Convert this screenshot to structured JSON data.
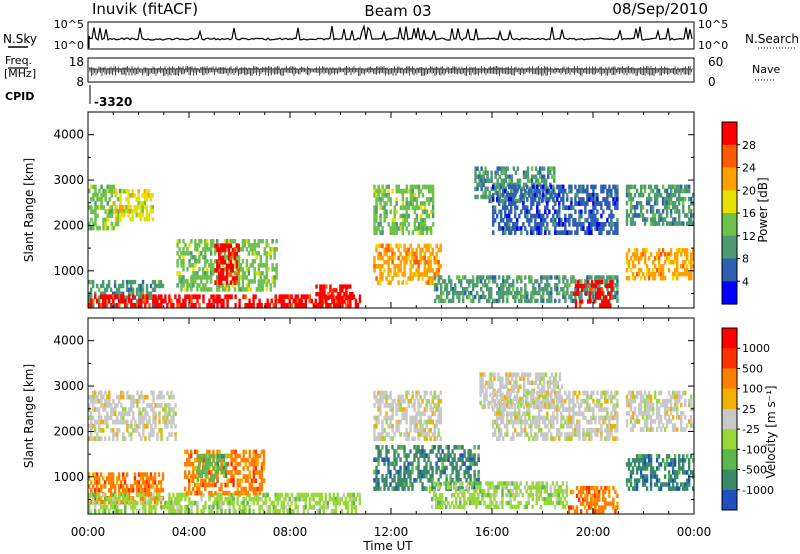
{
  "header": {
    "station": "Inuvik (fitACF)",
    "beam": "Beam 03",
    "date": "08/Sep/2010"
  },
  "top_panels": {
    "nsky_label": "N.Sky",
    "nsky_ticks": [
      "10^5",
      "10^0"
    ],
    "nsearch_label": "N.Search",
    "nsearch_ticks": [
      "10^5",
      "10^0"
    ],
    "freq_label_1": "Freq.",
    "freq_label_2": "[MHz]",
    "freq_ticks": [
      "18",
      "8"
    ],
    "nave_label": "Nave",
    "nave_ticks": [
      "60",
      "0"
    ],
    "cpid_label": "CPID",
    "cpid_value": "-3320"
  },
  "chart_data": [
    {
      "type": "heatmap",
      "panel": "power",
      "ylabel": "Slant Range [km]",
      "xlabel": "",
      "x_ticks": [
        "00:00",
        "04:00",
        "08:00",
        "12:00",
        "16:00",
        "20:00",
        "00:00"
      ],
      "y_ticks": [
        "1000",
        "2000",
        "3000",
        "4000"
      ],
      "ylim": [
        180,
        4500
      ],
      "xlim_hours": [
        0,
        24
      ],
      "colorbar_label": "Power [dB]",
      "colorbar_ticks": [
        "4",
        "8",
        "12",
        "16",
        "20",
        "24",
        "28"
      ],
      "colorbar_colors": [
        "#0000ff",
        "#2f5fb0",
        "#4e9a72",
        "#6cc24a",
        "#e8e000",
        "#ffa000",
        "#ff5a00",
        "#ff0000"
      ],
      "regions": [
        {
          "t0": 0.0,
          "t1": 1.3,
          "r0": 1900,
          "r1": 2900,
          "v": 3
        },
        {
          "t0": 1.0,
          "t1": 2.6,
          "r0": 2100,
          "r1": 2800,
          "v": 4
        },
        {
          "t0": 0.0,
          "t1": 3.0,
          "r0": 200,
          "r1": 800,
          "v": 2
        },
        {
          "t0": 0.0,
          "t1": 10.8,
          "r0": 200,
          "r1": 480,
          "v": 7
        },
        {
          "t0": 3.5,
          "t1": 7.5,
          "r0": 550,
          "r1": 1700,
          "v": 3
        },
        {
          "t0": 5.0,
          "t1": 6.0,
          "r0": 700,
          "r1": 1600,
          "v": 7
        },
        {
          "t0": 9.0,
          "t1": 10.5,
          "r0": 200,
          "r1": 700,
          "v": 7
        },
        {
          "t0": 11.3,
          "t1": 14.0,
          "r0": 700,
          "r1": 1600,
          "v": 5
        },
        {
          "t0": 11.3,
          "t1": 13.7,
          "r0": 1800,
          "r1": 2900,
          "v": 3
        },
        {
          "t0": 13.7,
          "t1": 21.0,
          "r0": 300,
          "r1": 900,
          "v": 2
        },
        {
          "t0": 15.3,
          "t1": 18.5,
          "r0": 2500,
          "r1": 3300,
          "v": 2
        },
        {
          "t0": 16.0,
          "t1": 21.0,
          "r0": 1800,
          "r1": 2900,
          "v": 1
        },
        {
          "t0": 19.2,
          "t1": 20.8,
          "r0": 200,
          "r1": 800,
          "v": 7
        },
        {
          "t0": 21.3,
          "t1": 24.0,
          "r0": 800,
          "r1": 1500,
          "v": 5
        },
        {
          "t0": 21.3,
          "t1": 24.0,
          "r0": 2000,
          "r1": 2900,
          "v": 2
        }
      ]
    },
    {
      "type": "heatmap",
      "panel": "velocity",
      "ylabel": "Slant Range [km]",
      "xlabel": "Time UT",
      "x_ticks": [
        "00:00",
        "04:00",
        "08:00",
        "12:00",
        "16:00",
        "20:00",
        "00:00"
      ],
      "y_ticks": [
        "1000",
        "2000",
        "3000",
        "4000"
      ],
      "ylim": [
        180,
        4500
      ],
      "xlim_hours": [
        0,
        24
      ],
      "colorbar_label": "Velocity [m s⁻¹]",
      "colorbar_ticks": [
        "1000",
        "500",
        "100",
        "25",
        "-25",
        "-100",
        "-500",
        "-1000"
      ],
      "colorbar_colors": [
        "#2050c0",
        "#3a8a6a",
        "#5ab84c",
        "#9ad83a",
        "#c8c8c8",
        "#f0b000",
        "#ff8000",
        "#ff3000",
        "#ff0000"
      ],
      "regions": [
        {
          "t0": 0.0,
          "t1": 3.5,
          "r0": 1800,
          "r1": 2900,
          "v": 4
        },
        {
          "t0": 0.0,
          "t1": 3.0,
          "r0": 400,
          "r1": 1100,
          "v": 6
        },
        {
          "t0": 0.0,
          "t1": 10.8,
          "r0": 200,
          "r1": 650,
          "v": 3
        },
        {
          "t0": 3.8,
          "t1": 7.0,
          "r0": 600,
          "r1": 1600,
          "v": 6
        },
        {
          "t0": 4.3,
          "t1": 5.5,
          "r0": 900,
          "r1": 1500,
          "v": 2
        },
        {
          "t0": 11.3,
          "t1": 15.5,
          "r0": 700,
          "r1": 1700,
          "v": 1
        },
        {
          "t0": 11.3,
          "t1": 14.0,
          "r0": 1800,
          "r1": 2900,
          "v": 4
        },
        {
          "t0": 13.5,
          "t1": 19.0,
          "r0": 300,
          "r1": 900,
          "v": 3
        },
        {
          "t0": 15.5,
          "t1": 18.8,
          "r0": 2500,
          "r1": 3300,
          "v": 4
        },
        {
          "t0": 16.0,
          "t1": 21.0,
          "r0": 1800,
          "r1": 2900,
          "v": 4
        },
        {
          "t0": 19.0,
          "t1": 21.0,
          "r0": 200,
          "r1": 800,
          "v": 6
        },
        {
          "t0": 21.3,
          "t1": 24.0,
          "r0": 700,
          "r1": 1500,
          "v": 1
        },
        {
          "t0": 21.3,
          "t1": 24.0,
          "r0": 2000,
          "r1": 2900,
          "v": 4
        }
      ]
    }
  ]
}
